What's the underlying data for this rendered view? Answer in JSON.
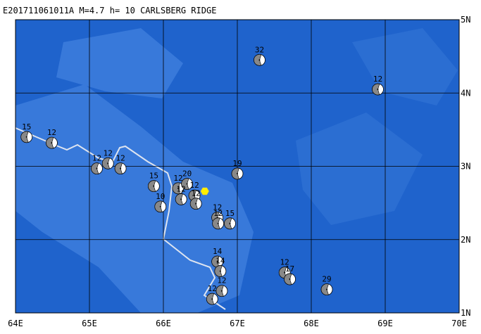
{
  "header": {
    "title": "E201711061011A M=4.7 h= 10 CARLSBERG RIDGE"
  },
  "map": {
    "xlim": [
      64,
      70
    ],
    "ylim": [
      1,
      5
    ],
    "xticks": [
      {
        "value": 64,
        "label": "64E"
      },
      {
        "value": 65,
        "label": "65E"
      },
      {
        "value": 66,
        "label": "66E"
      },
      {
        "value": 67,
        "label": "67E"
      },
      {
        "value": 68,
        "label": "68E"
      },
      {
        "value": 69,
        "label": "69E"
      },
      {
        "value": 70,
        "label": "70E"
      }
    ],
    "yticks": [
      {
        "value": 1,
        "label": "1N"
      },
      {
        "value": 2,
        "label": "2N"
      },
      {
        "value": 3,
        "label": "3N"
      },
      {
        "value": 4,
        "label": "4N"
      },
      {
        "value": 5,
        "label": "5N"
      }
    ],
    "epicenter": {
      "lon": 66.56,
      "lat": 2.66
    },
    "events": [
      {
        "lon": 64.15,
        "lat": 3.4,
        "depth": 15
      },
      {
        "lon": 64.49,
        "lat": 3.32,
        "depth": 12
      },
      {
        "lon": 65.1,
        "lat": 2.97,
        "depth": 12
      },
      {
        "lon": 65.25,
        "lat": 3.04,
        "depth": 12
      },
      {
        "lon": 65.42,
        "lat": 2.97,
        "depth": 12
      },
      {
        "lon": 65.87,
        "lat": 2.73,
        "depth": 15
      },
      {
        "lon": 65.96,
        "lat": 2.45,
        "depth": 10
      },
      {
        "lon": 66.2,
        "lat": 2.7,
        "depth": 12
      },
      {
        "lon": 66.32,
        "lat": 2.76,
        "depth": 20
      },
      {
        "lon": 66.24,
        "lat": 2.55,
        "depth": 12
      },
      {
        "lon": 66.42,
        "lat": 2.6,
        "depth": 12
      },
      {
        "lon": 66.44,
        "lat": 2.49,
        "depth": 12
      },
      {
        "lon": 67.0,
        "lat": 2.9,
        "depth": 19
      },
      {
        "lon": 67.3,
        "lat": 4.45,
        "depth": 32
      },
      {
        "lon": 68.9,
        "lat": 4.05,
        "depth": 12
      },
      {
        "lon": 66.73,
        "lat": 2.3,
        "depth": 12
      },
      {
        "lon": 66.74,
        "lat": 2.22,
        "depth": 12
      },
      {
        "lon": 66.9,
        "lat": 2.22,
        "depth": 15
      },
      {
        "lon": 66.73,
        "lat": 1.7,
        "depth": 14
      },
      {
        "lon": 66.77,
        "lat": 1.57,
        "depth": 14
      },
      {
        "lon": 66.79,
        "lat": 1.3,
        "depth": 12
      },
      {
        "lon": 66.66,
        "lat": 1.19,
        "depth": 12
      },
      {
        "lon": 67.64,
        "lat": 1.55,
        "depth": 12
      },
      {
        "lon": 67.71,
        "lat": 1.46,
        "depth": 17
      },
      {
        "lon": 68.21,
        "lat": 1.32,
        "depth": 29
      }
    ]
  }
}
